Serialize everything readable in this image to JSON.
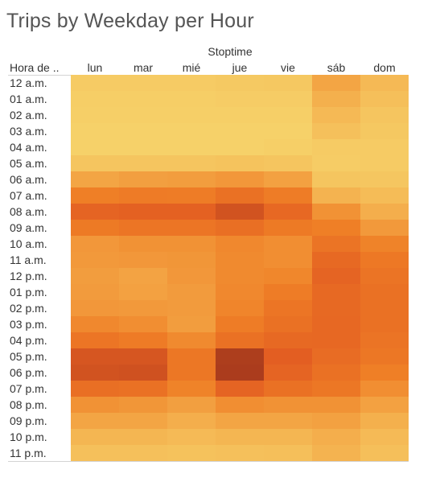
{
  "title": "Trips by Weekday per Hour",
  "chart_data": {
    "type": "heatmap",
    "title": "Trips by Weekday per Hour",
    "column_axis_label": "Stoptime",
    "row_axis_label": "Hora de ..",
    "columns": [
      "lun",
      "mar",
      "mié",
      "jue",
      "vie",
      "sáb",
      "dom"
    ],
    "rows": [
      "12 a.m.",
      "01 a.m.",
      "02 a.m.",
      "03 a.m.",
      "04 a.m.",
      "05 a.m.",
      "06 a.m.",
      "07 a.m.",
      "08 a.m.",
      "09 a.m.",
      "10 a.m.",
      "11 a.m.",
      "12 p.m.",
      "01 p.m.",
      "02 p.m.",
      "03 p.m.",
      "04 p.m.",
      "05 p.m.",
      "06 p.m.",
      "07 p.m.",
      "08 p.m.",
      "09 p.m.",
      "10 p.m.",
      "11 p.m."
    ],
    "values": [
      [
        0.06,
        0.06,
        0.06,
        0.07,
        0.08,
        0.3,
        0.18
      ],
      [
        0.04,
        0.04,
        0.04,
        0.05,
        0.05,
        0.24,
        0.14
      ],
      [
        0.03,
        0.03,
        0.03,
        0.03,
        0.03,
        0.18,
        0.1
      ],
      [
        0.02,
        0.02,
        0.02,
        0.02,
        0.02,
        0.13,
        0.08
      ],
      [
        0.02,
        0.02,
        0.02,
        0.02,
        0.03,
        0.06,
        0.06
      ],
      [
        0.1,
        0.1,
        0.1,
        0.11,
        0.1,
        0.05,
        0.06
      ],
      [
        0.3,
        0.33,
        0.34,
        0.37,
        0.32,
        0.1,
        0.09
      ],
      [
        0.5,
        0.53,
        0.52,
        0.6,
        0.52,
        0.22,
        0.16
      ],
      [
        0.7,
        0.72,
        0.72,
        0.82,
        0.67,
        0.4,
        0.25
      ],
      [
        0.54,
        0.57,
        0.57,
        0.62,
        0.54,
        0.5,
        0.36
      ],
      [
        0.37,
        0.4,
        0.4,
        0.45,
        0.42,
        0.58,
        0.48
      ],
      [
        0.36,
        0.37,
        0.38,
        0.44,
        0.42,
        0.66,
        0.55
      ],
      [
        0.34,
        0.31,
        0.37,
        0.44,
        0.46,
        0.7,
        0.58
      ],
      [
        0.35,
        0.32,
        0.35,
        0.45,
        0.52,
        0.66,
        0.6
      ],
      [
        0.37,
        0.36,
        0.35,
        0.47,
        0.57,
        0.66,
        0.6
      ],
      [
        0.45,
        0.42,
        0.34,
        0.52,
        0.6,
        0.67,
        0.6
      ],
      [
        0.57,
        0.53,
        0.44,
        0.6,
        0.66,
        0.67,
        0.58
      ],
      [
        0.8,
        0.8,
        0.56,
        0.96,
        0.74,
        0.64,
        0.56
      ],
      [
        0.82,
        0.83,
        0.56,
        0.97,
        0.7,
        0.6,
        0.5
      ],
      [
        0.62,
        0.6,
        0.48,
        0.7,
        0.6,
        0.56,
        0.42
      ],
      [
        0.4,
        0.38,
        0.33,
        0.42,
        0.4,
        0.4,
        0.32
      ],
      [
        0.3,
        0.3,
        0.25,
        0.3,
        0.3,
        0.32,
        0.24
      ],
      [
        0.2,
        0.2,
        0.17,
        0.2,
        0.2,
        0.25,
        0.17
      ],
      [
        0.13,
        0.13,
        0.12,
        0.13,
        0.14,
        0.22,
        0.14
      ]
    ],
    "colors": [
      "#f6d46b",
      "#f4ae4c",
      "#ef7f26",
      "#e35d22",
      "#a3381c"
    ],
    "grid": false,
    "legend": "none"
  }
}
